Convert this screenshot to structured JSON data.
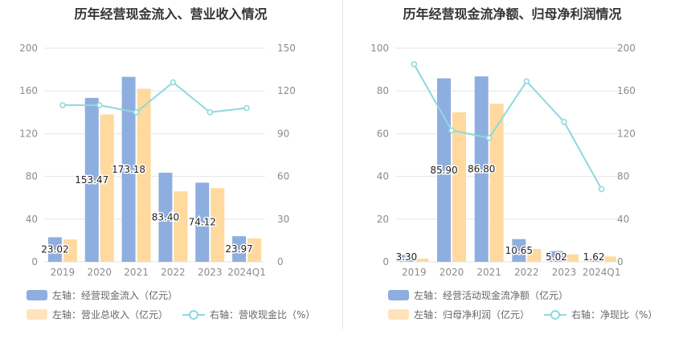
{
  "colors": {
    "bar_primary": "#8eaee0",
    "bar_secondary": "#ffd99e",
    "line": "#8fd8dd",
    "grid": "#e6e6e6",
    "axis_text": "#8c8c8c"
  },
  "chart_data": [
    {
      "type": "bar",
      "title": "历年经营现金流入、营业收入情况",
      "categories": [
        "2019",
        "2020",
        "2021",
        "2022",
        "2023",
        "2024Q1"
      ],
      "left_axis": {
        "ylim": [
          0,
          200
        ],
        "ticks": [
          "0",
          "40",
          "80",
          "120",
          "160",
          "200"
        ]
      },
      "right_axis": {
        "ylim": [
          0,
          150
        ],
        "ticks": [
          "0",
          "30",
          "60",
          "90",
          "120",
          "150"
        ]
      },
      "series": [
        {
          "name": "左轴：经营现金流入（亿元）",
          "kind": "bar",
          "axis": "left",
          "values": [
            23.02,
            153.47,
            173.18,
            83.4,
            74.12,
            23.97
          ],
          "labels": [
            "23.02",
            "153.47",
            "173.18",
            "83.40",
            "74.12",
            "23.97"
          ]
        },
        {
          "name": "左轴：营业总收入（亿元）",
          "kind": "bar",
          "axis": "left",
          "values": [
            21,
            138,
            162,
            66,
            69,
            22
          ]
        },
        {
          "name": "右轴：营收现金比（%）",
          "kind": "line",
          "axis": "right",
          "values": [
            110,
            110,
            105,
            126,
            105,
            108
          ]
        }
      ],
      "legend": [
        [
          "左轴：经营现金流入（亿元）"
        ],
        [
          "左轴：营业总收入（亿元）",
          "右轴：营收现金比（%）"
        ]
      ],
      "legend_placement": "bottom",
      "grid": true
    },
    {
      "type": "bar",
      "title": "历年经营现金流净额、归母净利润情况",
      "categories": [
        "2019",
        "2020",
        "2021",
        "2022",
        "2023",
        "2024Q1"
      ],
      "left_axis": {
        "ylim": [
          0,
          100
        ],
        "ticks": [
          "0",
          "20",
          "40",
          "60",
          "80",
          "100"
        ]
      },
      "right_axis": {
        "ylim": [
          0,
          200
        ],
        "ticks": [
          "0",
          "40",
          "80",
          "120",
          "160",
          "200"
        ]
      },
      "series": [
        {
          "name": "左轴：经营活动现金流净额（亿元）",
          "kind": "bar",
          "axis": "left",
          "values": [
            3.3,
            85.9,
            86.8,
            10.65,
            5.02,
            1.62
          ],
          "labels": [
            "3.30",
            "85.90",
            "86.80",
            "10.65",
            "5.02",
            "1.62"
          ]
        },
        {
          "name": "左轴：归母净利润（亿元）",
          "kind": "bar",
          "axis": "left",
          "values": [
            1.5,
            70,
            74,
            6,
            3.5,
            2.5
          ]
        },
        {
          "name": "右轴：净现比（%）",
          "kind": "line",
          "axis": "right",
          "values": [
            185,
            123,
            116,
            169,
            131,
            68
          ]
        }
      ],
      "legend": [
        [
          "左轴：经营活动现金流净额（亿元）"
        ],
        [
          "左轴：归母净利润（亿元）",
          "右轴：净现比（%）"
        ]
      ],
      "legend_placement": "bottom",
      "grid": true
    }
  ]
}
